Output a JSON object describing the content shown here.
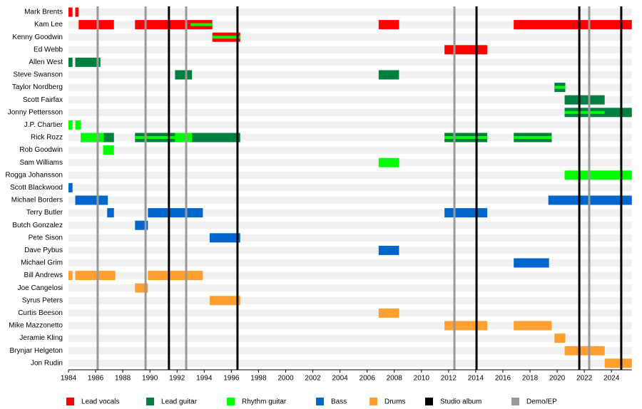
{
  "chart_data": {
    "type": "timeline",
    "xlim": [
      1984,
      2025.5
    ],
    "xticks": [
      1984,
      1986,
      1988,
      1990,
      1992,
      1994,
      1996,
      1998,
      2000,
      2002,
      2004,
      2006,
      2008,
      2010,
      2012,
      2014,
      2016,
      2018,
      2020,
      2022,
      2024
    ],
    "roles": [
      {
        "name": "Lead vocals",
        "color": "#ff0000"
      },
      {
        "name": "Lead guitar",
        "color": "#008040"
      },
      {
        "name": "Rhythm guitar",
        "color": "#00ff00"
      },
      {
        "name": "Bass",
        "color": "#0066cc"
      },
      {
        "name": "Drums",
        "color": "#ffa030"
      }
    ],
    "lines": [
      {
        "name": "Studio album",
        "color": "#000000",
        "x": [
          1991.4,
          1996.45,
          2014.06,
          2021.63,
          2024.72
        ]
      },
      {
        "name": "Demo/EP",
        "color": "#999999",
        "x": [
          1986.15,
          1989.68,
          1992.67,
          2012.43,
          2022.36
        ]
      }
    ],
    "members": [
      {
        "name": "Mark Brents",
        "periods": [
          {
            "role": "Lead vocals",
            "start": 1984.0,
            "end": 1984.3
          },
          {
            "role": "Lead vocals",
            "start": 1984.5,
            "end": 1984.75
          }
        ]
      },
      {
        "name": "Kam Lee",
        "periods": [
          {
            "role": "Lead vocals",
            "start": 1984.75,
            "end": 1987.35
          },
          {
            "role": "Lead vocals",
            "start": 1988.9,
            "end": 1994.6
          },
          {
            "role": "Rhythm guitar",
            "start": 1993.0,
            "end": 1994.6,
            "stripe": true
          },
          {
            "role": "Lead vocals",
            "start": 2006.85,
            "end": 2008.35
          },
          {
            "role": "Lead vocals",
            "start": 2016.8,
            "end": 2025.5
          }
        ]
      },
      {
        "name": "Kenny Goodwin",
        "periods": [
          {
            "role": "Lead vocals",
            "start": 1994.6,
            "end": 1996.65
          },
          {
            "role": "Rhythm guitar",
            "start": 1994.6,
            "end": 1996.65,
            "stripe": true
          }
        ]
      },
      {
        "name": "Ed Webb",
        "periods": [
          {
            "role": "Lead vocals",
            "start": 2011.7,
            "end": 2014.85
          }
        ]
      },
      {
        "name": "Allen West",
        "periods": [
          {
            "role": "Lead guitar",
            "start": 1984.0,
            "end": 1984.3
          },
          {
            "role": "Lead guitar",
            "start": 1984.5,
            "end": 1986.35
          }
        ]
      },
      {
        "name": "Steve Swanson",
        "periods": [
          {
            "role": "Lead guitar",
            "start": 1991.85,
            "end": 1993.1
          },
          {
            "role": "Lead guitar",
            "start": 2006.85,
            "end": 2008.35
          }
        ]
      },
      {
        "name": "Taylor Nordberg",
        "periods": [
          {
            "role": "Lead guitar",
            "start": 2019.8,
            "end": 2020.6
          },
          {
            "role": "Rhythm guitar",
            "start": 2019.8,
            "end": 2020.6,
            "stripe": true
          }
        ]
      },
      {
        "name": "Scott Fairfax",
        "periods": [
          {
            "role": "Lead guitar",
            "start": 2020.55,
            "end": 2023.5
          }
        ]
      },
      {
        "name": "Jonny Pettersson",
        "periods": [
          {
            "role": "Lead guitar",
            "start": 2020.55,
            "end": 2025.5
          },
          {
            "role": "Rhythm guitar",
            "start": 2020.55,
            "end": 2023.5,
            "stripe": true
          }
        ]
      },
      {
        "name": "J.P. Chartier",
        "periods": [
          {
            "role": "Rhythm guitar",
            "start": 1984.0,
            "end": 1984.3
          },
          {
            "role": "Rhythm guitar",
            "start": 1984.5,
            "end": 1984.9
          }
        ]
      },
      {
        "name": "Rick Rozz",
        "periods": [
          {
            "role": "Rhythm guitar",
            "start": 1984.9,
            "end": 1986.6
          },
          {
            "role": "Lead guitar",
            "start": 1986.6,
            "end": 1987.35
          },
          {
            "role": "Lead guitar",
            "start": 1988.9,
            "end": 1996.65
          },
          {
            "role": "Rhythm guitar",
            "start": 1988.9,
            "end": 1991.85,
            "stripe": true
          },
          {
            "role": "Rhythm guitar",
            "start": 1991.85,
            "end": 1993.1
          },
          {
            "role": "Lead guitar",
            "start": 2011.7,
            "end": 2014.85
          },
          {
            "role": "Rhythm guitar",
            "start": 2011.7,
            "end": 2014.85,
            "stripe": true
          },
          {
            "role": "Lead guitar",
            "start": 2016.8,
            "end": 2019.6
          },
          {
            "role": "Rhythm guitar",
            "start": 2016.8,
            "end": 2019.6,
            "stripe": true
          }
        ]
      },
      {
        "name": "Rob Goodwin",
        "periods": [
          {
            "role": "Rhythm guitar",
            "start": 1986.55,
            "end": 1987.35
          }
        ]
      },
      {
        "name": "Sam Williams",
        "periods": [
          {
            "role": "Rhythm guitar",
            "start": 2006.85,
            "end": 2008.35
          }
        ]
      },
      {
        "name": "Rogga Johansson",
        "periods": [
          {
            "role": "Rhythm guitar",
            "start": 2020.55,
            "end": 2025.5
          }
        ]
      },
      {
        "name": "Scott Blackwood",
        "periods": [
          {
            "role": "Bass",
            "start": 1984.0,
            "end": 1984.3
          }
        ]
      },
      {
        "name": "Michael Borders",
        "periods": [
          {
            "role": "Bass",
            "start": 1984.5,
            "end": 1986.9
          },
          {
            "role": "Bass",
            "start": 2019.35,
            "end": 2025.5
          }
        ]
      },
      {
        "name": "Terry Butler",
        "periods": [
          {
            "role": "Bass",
            "start": 1986.85,
            "end": 1987.35
          },
          {
            "role": "Bass",
            "start": 1989.85,
            "end": 1993.9
          },
          {
            "role": "Bass",
            "start": 2011.7,
            "end": 2014.85
          }
        ]
      },
      {
        "name": "Butch Gonzalez",
        "periods": [
          {
            "role": "Bass",
            "start": 1988.9,
            "end": 1989.85
          }
        ]
      },
      {
        "name": "Pete Sison",
        "periods": [
          {
            "role": "Bass",
            "start": 1994.4,
            "end": 1996.65
          }
        ]
      },
      {
        "name": "Dave Pybus",
        "periods": [
          {
            "role": "Bass",
            "start": 2006.85,
            "end": 2008.35
          }
        ]
      },
      {
        "name": "Michael Grim",
        "periods": [
          {
            "role": "Bass",
            "start": 2016.8,
            "end": 2019.4
          }
        ]
      },
      {
        "name": "Bill Andrews",
        "periods": [
          {
            "role": "Drums",
            "start": 1984.0,
            "end": 1984.3
          },
          {
            "role": "Drums",
            "start": 1984.5,
            "end": 1987.45
          },
          {
            "role": "Drums",
            "start": 1989.85,
            "end": 1993.9
          }
        ]
      },
      {
        "name": "Joe Cangelosi",
        "periods": [
          {
            "role": "Drums",
            "start": 1988.9,
            "end": 1989.85
          }
        ]
      },
      {
        "name": "Syrus Peters",
        "periods": [
          {
            "role": "Drums",
            "start": 1994.4,
            "end": 1996.65
          }
        ]
      },
      {
        "name": "Curtis Beeson",
        "periods": [
          {
            "role": "Drums",
            "start": 2006.85,
            "end": 2008.35
          }
        ]
      },
      {
        "name": "Mike Mazzonetto",
        "periods": [
          {
            "role": "Drums",
            "start": 2011.7,
            "end": 2014.85
          },
          {
            "role": "Drums",
            "start": 2016.8,
            "end": 2019.6
          }
        ]
      },
      {
        "name": "Jeramie Kling",
        "periods": [
          {
            "role": "Drums",
            "start": 2019.8,
            "end": 2020.6
          }
        ]
      },
      {
        "name": "Brynjar Helgeton",
        "periods": [
          {
            "role": "Drums",
            "start": 2020.55,
            "end": 2023.5
          }
        ]
      },
      {
        "name": "Jon Rudin",
        "periods": [
          {
            "role": "Drums",
            "start": 2023.5,
            "end": 2025.5
          }
        ]
      }
    ]
  }
}
